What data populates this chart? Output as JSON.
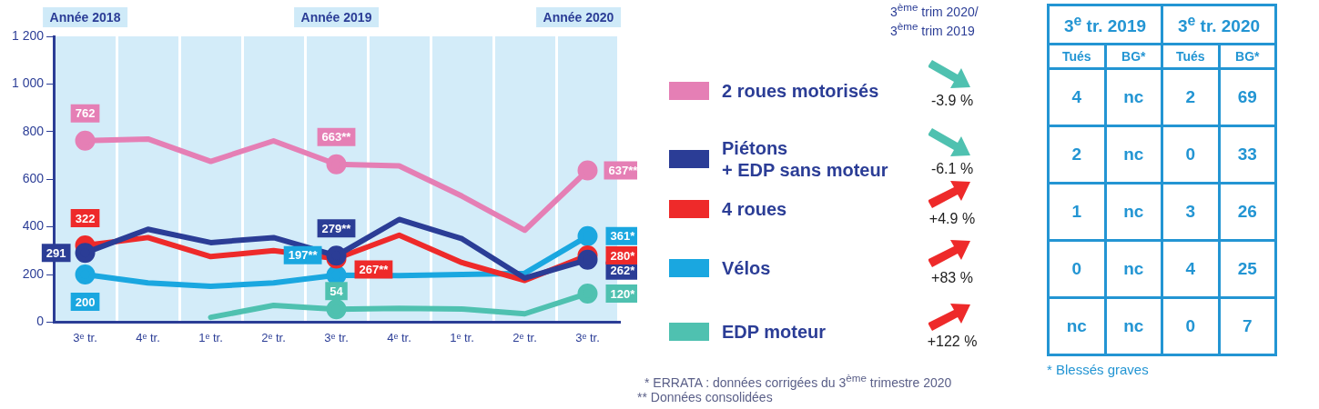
{
  "chart_data": [
    {
      "type": "line",
      "categories": [
        "3ᵉ tr.",
        "4ᵉ tr.",
        "1ᵉ tr.",
        "2ᵉ tr.",
        "3ᵉ tr.",
        "4ᵉ tr.",
        "1ᵉ tr.",
        "2ᵉ tr.",
        "3ᵉ tr."
      ],
      "series": [
        {
          "name": "2 roues motorisés",
          "color": "#e57fb5",
          "values": [
            762,
            769,
            675,
            761,
            663,
            656,
            529,
            386,
            637
          ],
          "value_labels": [
            "762",
            null,
            null,
            null,
            "663**",
            null,
            null,
            null,
            "637**"
          ]
        },
        {
          "name": "Piétons\n+ EDP sans moteur",
          "color": "#2b3d96",
          "values": [
            291,
            390,
            334,
            355,
            279,
            431,
            350,
            185,
            262
          ],
          "value_labels": [
            "291",
            null,
            null,
            null,
            "279**",
            null,
            null,
            null,
            "262*"
          ]
        },
        {
          "name": "4 roues",
          "color": "#ee2a2a",
          "values": [
            322,
            355,
            275,
            300,
            267,
            365,
            250,
            175,
            280
          ],
          "value_labels": [
            "322",
            null,
            null,
            null,
            "267**",
            null,
            null,
            null,
            "280*"
          ]
        },
        {
          "name": "Vélos",
          "color": "#1aa7e0",
          "values": [
            200,
            165,
            150,
            165,
            197,
            195,
            200,
            205,
            361
          ],
          "value_labels": [
            "200",
            null,
            null,
            null,
            "197**",
            null,
            null,
            null,
            "361*"
          ]
        },
        {
          "name": "EDP moteur",
          "color": "#4fc1b0",
          "values": [
            null,
            null,
            20,
            70,
            54,
            58,
            55,
            35,
            120
          ],
          "value_labels": [
            null,
            null,
            null,
            null,
            "54",
            null,
            null,
            null,
            "120*"
          ]
        }
      ],
      "ylim": [
        0,
        1200
      ],
      "yticks": [
        0,
        200,
        400,
        600,
        800,
        {
          "value": 1000,
          "label": "1 000"
        },
        {
          "value": 1200,
          "label": "1 200"
        }
      ],
      "grid": "x",
      "legend": "right",
      "annotations": [
        "Année 2018",
        "Année 2019",
        "Année 2020",
        "3$^{ème}$ trim 2020/\n3$^{ème}$ trim 2019",
        "-3.9 %",
        "-6.1 %",
        "+4.9 %",
        "+83 %",
        "+122 %",
        "* ERRATA : données corrigées du 3$^{ème}$ trimestre 2020",
        "** Données consolidées"
      ]
    },
    {
      "type": "other",
      "annotations": [
        "3$^{e}$ tr. 2019",
        "3$^{e}$ tr. 2020",
        "Tués",
        "BG*",
        "Tués",
        "BG*",
        "4",
        "nc",
        "2",
        "69",
        "2",
        "nc",
        "0",
        "33",
        "1",
        "nc",
        "3",
        "26",
        "0",
        "nc",
        "4",
        "25",
        "nc",
        "nc",
        "0",
        "7",
        "* Blessés graves"
      ]
    }
  ]
}
